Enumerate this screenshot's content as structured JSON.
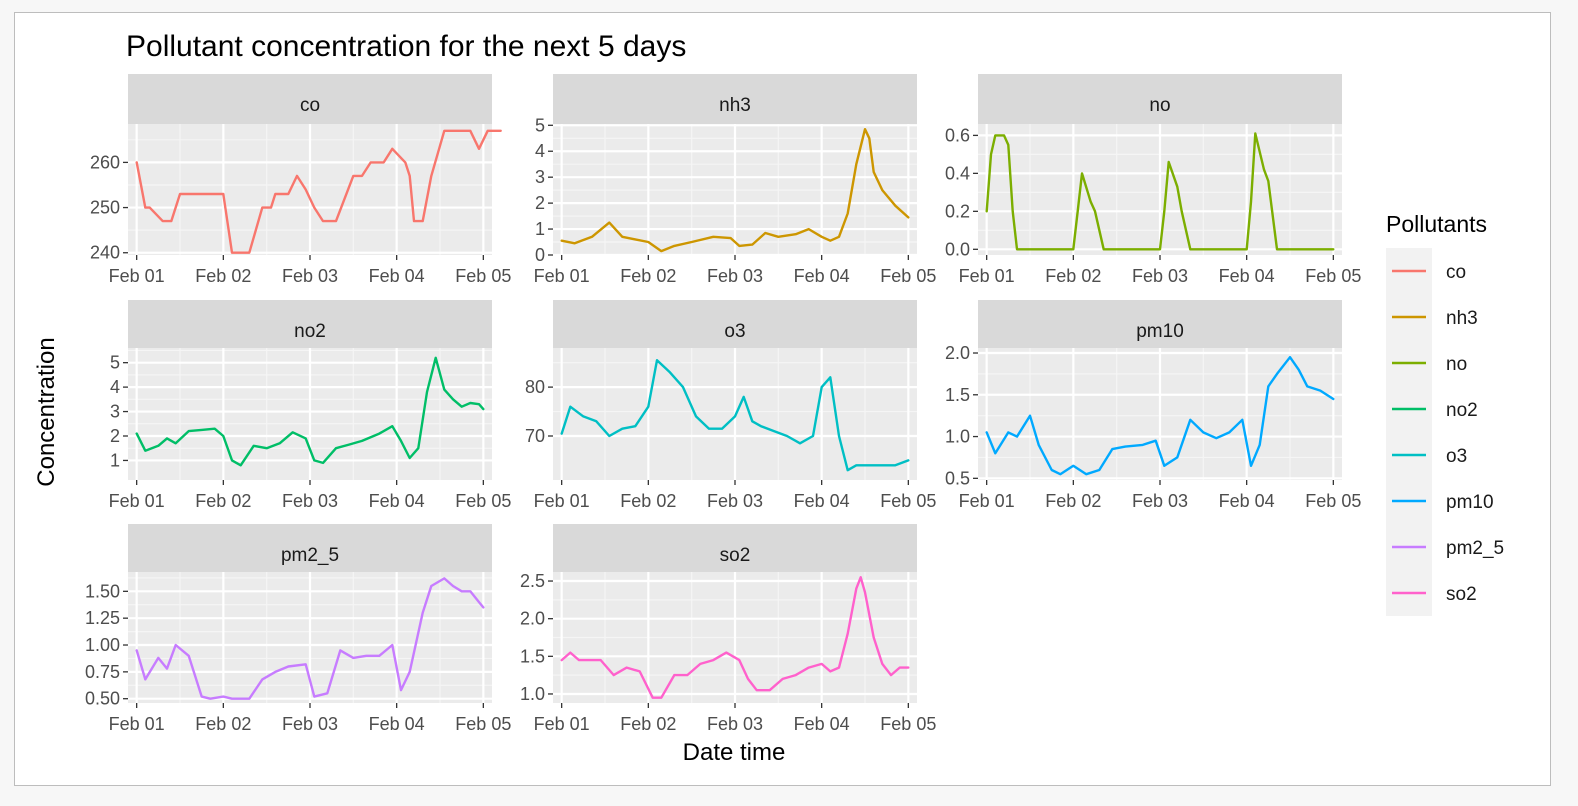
{
  "chart_data": {
    "type": "line",
    "title": "Pollutant concentration for the next 5 days",
    "xlabel": "Date time",
    "ylabel": "Concentration",
    "legend": {
      "title": "Pollutants",
      "placement": "right"
    },
    "x_ticks": [
      "Feb 01",
      "Feb 02",
      "Feb 03",
      "Feb 04",
      "Feb 05"
    ],
    "x_unit": "days (0 = Feb 01 00:00)",
    "grid": true,
    "panels": [
      {
        "name": "co",
        "color": "#F8766D",
        "ylim": [
          239.5,
          268.5
        ],
        "yticks": [
          "240",
          "250",
          "260"
        ],
        "x": [
          0,
          0.1,
          0.15,
          0.3,
          0.4,
          0.5,
          0.6,
          0.7,
          1.0,
          1.1,
          1.2,
          1.3,
          1.45,
          1.55,
          1.6,
          1.75,
          1.85,
          1.95,
          2.05,
          2.15,
          2.2,
          2.3,
          2.5,
          2.6,
          2.7,
          2.85,
          2.95,
          3.1,
          3.15,
          3.2,
          3.3,
          3.4,
          3.55,
          3.7,
          3.85,
          3.95,
          4.05,
          4.1,
          4.2
        ],
        "y": [
          260,
          250,
          250,
          247,
          247,
          253,
          253,
          253,
          253,
          240,
          240,
          240,
          250,
          250,
          253,
          253,
          257,
          254,
          250,
          247,
          247,
          247,
          257,
          257,
          260,
          260,
          263,
          260,
          257,
          247,
          247,
          257,
          267,
          267,
          267,
          263,
          267,
          267,
          267
        ]
      },
      {
        "name": "nh3",
        "color": "#CD9600",
        "ylim": [
          0,
          5.05
        ],
        "yticks": [
          "0",
          "1",
          "2",
          "3",
          "4",
          "5"
        ],
        "x": [
          0,
          0.15,
          0.35,
          0.55,
          0.7,
          0.85,
          1.0,
          1.15,
          1.3,
          1.5,
          1.75,
          1.95,
          2.05,
          2.2,
          2.35,
          2.5,
          2.7,
          2.85,
          3.0,
          3.1,
          3.2,
          3.3,
          3.4,
          3.5,
          3.55,
          3.6,
          3.7,
          3.85,
          4.0
        ],
        "y": [
          0.55,
          0.45,
          0.7,
          1.25,
          0.7,
          0.6,
          0.5,
          0.15,
          0.35,
          0.5,
          0.7,
          0.65,
          0.35,
          0.4,
          0.85,
          0.7,
          0.8,
          1.0,
          0.7,
          0.55,
          0.7,
          1.6,
          3.5,
          4.85,
          4.5,
          3.2,
          2.5,
          1.9,
          1.45
        ]
      },
      {
        "name": "no",
        "color": "#7CAE00",
        "ylim": [
          -0.03,
          0.66
        ],
        "yticks": [
          "0.0",
          "0.2",
          "0.4",
          "0.6"
        ],
        "x": [
          0,
          0.05,
          0.1,
          0.2,
          0.25,
          0.3,
          0.35,
          1.0,
          1.05,
          1.1,
          1.2,
          1.25,
          1.35,
          2.0,
          2.05,
          2.1,
          2.2,
          2.25,
          2.35,
          3.0,
          3.05,
          3.1,
          3.2,
          3.25,
          3.35,
          4.0
        ],
        "y": [
          0.2,
          0.5,
          0.6,
          0.6,
          0.55,
          0.2,
          0.0,
          0.0,
          0.2,
          0.4,
          0.25,
          0.2,
          0.0,
          0.0,
          0.2,
          0.46,
          0.33,
          0.2,
          0.0,
          0.0,
          0.25,
          0.61,
          0.42,
          0.36,
          0.0,
          0.0
        ]
      },
      {
        "name": "no2",
        "color": "#00BE67",
        "ylim": [
          0.2,
          5.6
        ],
        "yticks": [
          "1",
          "2",
          "3",
          "4",
          "5"
        ],
        "x": [
          0,
          0.1,
          0.25,
          0.35,
          0.45,
          0.6,
          0.75,
          0.9,
          1.0,
          1.1,
          1.2,
          1.35,
          1.5,
          1.65,
          1.8,
          1.95,
          2.05,
          2.15,
          2.3,
          2.45,
          2.6,
          2.8,
          2.95,
          3.05,
          3.15,
          3.25,
          3.35,
          3.45,
          3.55,
          3.65,
          3.75,
          3.85,
          3.95,
          4.0
        ],
        "y": [
          2.1,
          1.4,
          1.6,
          1.9,
          1.7,
          2.2,
          2.25,
          2.3,
          2.0,
          1.0,
          0.8,
          1.6,
          1.5,
          1.7,
          2.15,
          1.9,
          1.0,
          0.9,
          1.5,
          1.65,
          1.8,
          2.1,
          2.4,
          1.8,
          1.1,
          1.5,
          3.8,
          5.2,
          3.9,
          3.5,
          3.2,
          3.35,
          3.3,
          3.1
        ]
      },
      {
        "name": "o3",
        "color": "#00BFC4",
        "ylim": [
          61,
          88
        ],
        "yticks": [
          "70",
          "80"
        ],
        "x": [
          0,
          0.1,
          0.25,
          0.4,
          0.55,
          0.7,
          0.85,
          1.0,
          1.1,
          1.25,
          1.4,
          1.55,
          1.7,
          1.85,
          2.0,
          2.1,
          2.2,
          2.3,
          2.45,
          2.6,
          2.75,
          2.9,
          3.0,
          3.1,
          3.2,
          3.3,
          3.4,
          3.5,
          3.6,
          3.7,
          3.85,
          4.0
        ],
        "y": [
          70.5,
          76,
          74,
          73,
          70,
          71.5,
          72,
          76,
          85.5,
          83,
          80,
          74,
          71.5,
          71.5,
          74,
          78,
          73,
          72,
          71,
          70,
          68.5,
          70,
          80,
          82,
          70,
          63,
          64,
          64,
          64,
          64,
          64,
          65
        ]
      },
      {
        "name": "pm10",
        "color": "#00A9FF",
        "ylim": [
          0.48,
          2.06
        ],
        "yticks": [
          "0.5",
          "1.0",
          "1.5",
          "2.0"
        ],
        "x": [
          0,
          0.1,
          0.25,
          0.35,
          0.5,
          0.6,
          0.75,
          0.85,
          1.0,
          1.15,
          1.3,
          1.45,
          1.6,
          1.8,
          1.95,
          2.05,
          2.2,
          2.35,
          2.5,
          2.65,
          2.8,
          2.95,
          3.05,
          3.15,
          3.25,
          3.35,
          3.5,
          3.6,
          3.7,
          3.85,
          4.0
        ],
        "y": [
          1.05,
          0.8,
          1.05,
          1.0,
          1.25,
          0.9,
          0.6,
          0.55,
          0.65,
          0.55,
          0.6,
          0.85,
          0.88,
          0.9,
          0.95,
          0.65,
          0.75,
          1.2,
          1.05,
          0.98,
          1.05,
          1.2,
          0.65,
          0.9,
          1.6,
          1.75,
          1.95,
          1.8,
          1.6,
          1.55,
          1.45
        ]
      },
      {
        "name": "pm2_5",
        "color": "#C77CFF",
        "ylim": [
          0.46,
          1.68
        ],
        "yticks": [
          "0.50",
          "0.75",
          "1.00",
          "1.25",
          "1.50"
        ],
        "x": [
          0,
          0.1,
          0.25,
          0.35,
          0.45,
          0.6,
          0.75,
          0.85,
          1.0,
          1.1,
          1.3,
          1.45,
          1.6,
          1.75,
          1.95,
          2.05,
          2.2,
          2.35,
          2.5,
          2.65,
          2.8,
          2.95,
          3.05,
          3.15,
          3.3,
          3.4,
          3.55,
          3.65,
          3.75,
          3.85,
          3.95,
          4.0
        ],
        "y": [
          0.95,
          0.68,
          0.88,
          0.78,
          1.0,
          0.9,
          0.52,
          0.5,
          0.52,
          0.5,
          0.5,
          0.68,
          0.75,
          0.8,
          0.82,
          0.52,
          0.55,
          0.95,
          0.88,
          0.9,
          0.9,
          1.0,
          0.58,
          0.75,
          1.3,
          1.55,
          1.62,
          1.55,
          1.5,
          1.5,
          1.4,
          1.35
        ]
      },
      {
        "name": "so2",
        "color": "#FF61CC",
        "ylim": [
          0.88,
          2.62
        ],
        "yticks": [
          "1.0",
          "1.5",
          "2.0",
          "2.5"
        ],
        "x": [
          0,
          0.1,
          0.2,
          0.3,
          0.45,
          0.6,
          0.75,
          0.9,
          1.05,
          1.15,
          1.3,
          1.45,
          1.6,
          1.75,
          1.9,
          2.05,
          2.15,
          2.25,
          2.4,
          2.55,
          2.7,
          2.85,
          3.0,
          3.1,
          3.2,
          3.3,
          3.4,
          3.45,
          3.5,
          3.6,
          3.7,
          3.8,
          3.9,
          4.0
        ],
        "y": [
          1.45,
          1.55,
          1.45,
          1.45,
          1.45,
          1.25,
          1.35,
          1.3,
          0.95,
          0.95,
          1.25,
          1.25,
          1.4,
          1.45,
          1.55,
          1.45,
          1.2,
          1.05,
          1.05,
          1.2,
          1.25,
          1.35,
          1.4,
          1.3,
          1.35,
          1.8,
          2.4,
          2.55,
          2.35,
          1.75,
          1.4,
          1.25,
          1.35,
          1.35
        ]
      }
    ]
  }
}
